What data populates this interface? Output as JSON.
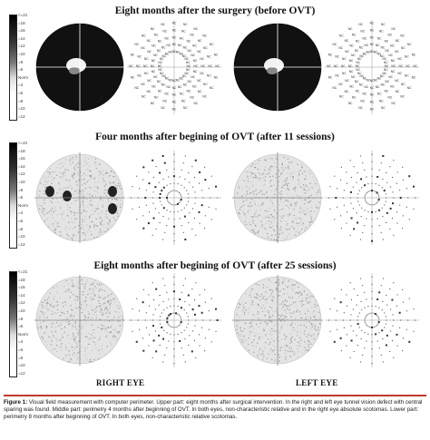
{
  "panels": [
    {
      "title": "Eight months  after the surgery (before OVT)",
      "scale_labels": [
        "<=21",
        "=18",
        "=16",
        "=14",
        "=12",
        "=10",
        "=8",
        "=6",
        "Norm",
        "=4",
        "=6",
        "=8",
        "=10",
        "=12"
      ],
      "right_field": "dense-black",
      "left_field": "dense-black",
      "right_chart": "NC-symbols",
      "left_chart": "NC-symbols"
    },
    {
      "title": "Four months after begining of OVT (after 11 sessions)",
      "scale_labels": [
        "<=21",
        "=18",
        "=16",
        "=14",
        "=12",
        "=10",
        "=8",
        "=6",
        "Norm",
        "=4",
        "=6",
        "=8",
        "=10",
        "=12"
      ],
      "right_field": "light-with-scotomas",
      "left_field": "light",
      "right_chart": "dots",
      "left_chart": "dots"
    },
    {
      "title": "Eight months after begining of OVT (after 25 sessions)",
      "scale_labels": [
        "<=21",
        "=18",
        "=16",
        "=14",
        "=12",
        "=10",
        "=8",
        "=6",
        "Norm",
        "=4",
        "=6",
        "=8",
        "=10",
        "=12"
      ],
      "right_field": "light",
      "left_field": "light",
      "right_chart": "dots",
      "left_chart": "dots"
    }
  ],
  "eye_labels": {
    "right": "RIGHT EYE",
    "left": "LEFT EYE"
  },
  "caption": {
    "label": "Figure 1:",
    "text": " Visual field measurement with computer perimeter. Upper part: eight months after surgical intervention. In the right and left eye tunnel vision defect with central sparing was found. Middle part: perimetry 4 months after beginning of OVT. In both eyes, non-characteristic relative and in the right eye absolute scotomas. Lower part: perimetry 8 months after beginning of OVT. In both eyes, non-characteristic relative scotomas."
  },
  "symbols": {
    "nc": "NC"
  },
  "colors": {
    "rule": "#c0392b",
    "field_dark": "#111111",
    "field_light": "#d6d6d6"
  }
}
